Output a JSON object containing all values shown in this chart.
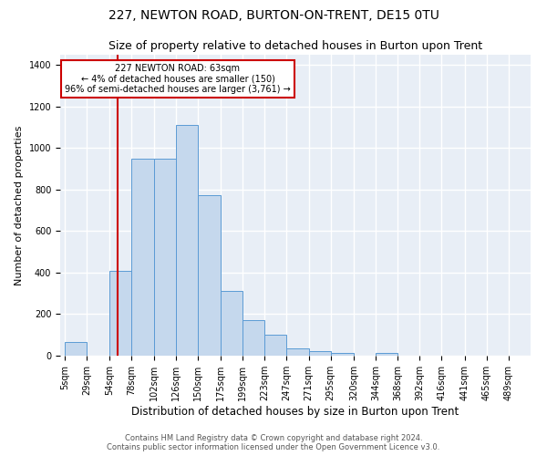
{
  "title1": "227, NEWTON ROAD, BURTON-ON-TRENT, DE15 0TU",
  "title2": "Size of property relative to detached houses in Burton upon Trent",
  "xlabel": "Distribution of detached houses by size in Burton upon Trent",
  "ylabel": "Number of detached properties",
  "footer1": "Contains HM Land Registry data © Crown copyright and database right 2024.",
  "footer2": "Contains public sector information licensed under the Open Government Licence v3.0.",
  "annotation_line1": "227 NEWTON ROAD: 63sqm",
  "annotation_line2": "← 4% of detached houses are smaller (150)",
  "annotation_line3": "96% of semi-detached houses are larger (3,761) →",
  "bin_edges": [
    5,
    29,
    54,
    78,
    102,
    126,
    150,
    175,
    199,
    223,
    247,
    271,
    295,
    320,
    344,
    368,
    392,
    416,
    441,
    465,
    489
  ],
  "bar_heights": [
    65,
    0,
    410,
    950,
    950,
    1110,
    775,
    310,
    170,
    100,
    35,
    20,
    15,
    0,
    15,
    0,
    0,
    0,
    0,
    0
  ],
  "bar_color": "#c5d8ed",
  "bar_edge_color": "#5b9bd5",
  "red_line_x": 63,
  "ylim": [
    0,
    1450
  ],
  "yticks": [
    0,
    200,
    400,
    600,
    800,
    1000,
    1200,
    1400
  ],
  "bg_color": "#e8eef6",
  "grid_color": "#ffffff",
  "annotation_box_color": "#ffffff",
  "annotation_box_edge": "#cc0000",
  "red_line_color": "#cc0000",
  "title_fontsize": 10,
  "subtitle_fontsize": 9,
  "tick_fontsize": 7,
  "ylabel_fontsize": 8,
  "xlabel_fontsize": 8.5,
  "footer_fontsize": 6
}
